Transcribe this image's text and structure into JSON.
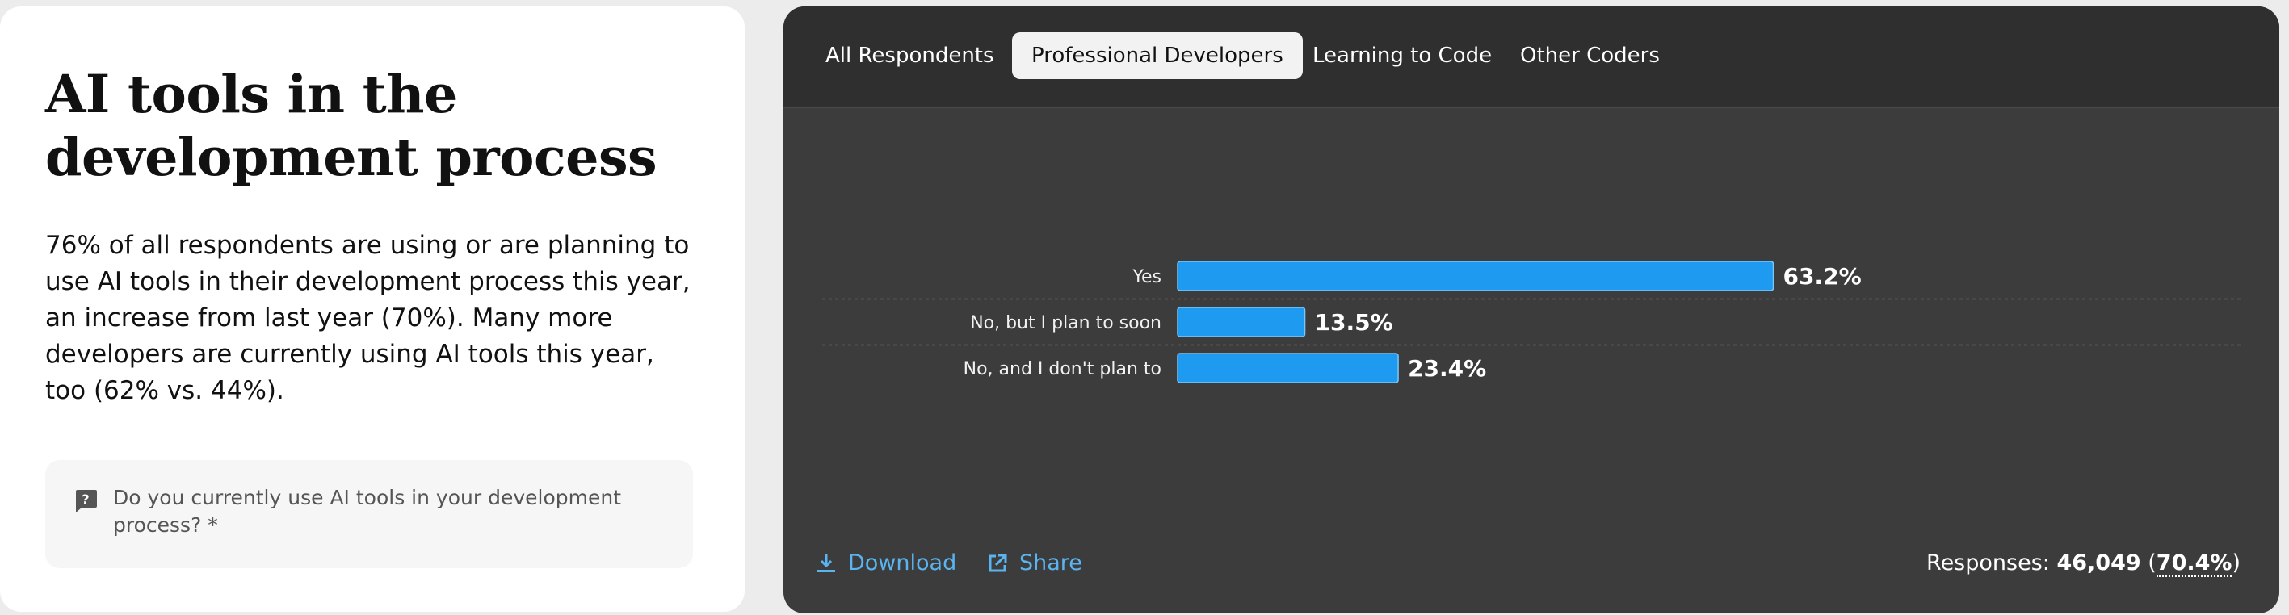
{
  "left": {
    "title": "AI tools in the development process",
    "description": "76% of all respondents are using or are planning to use AI tools in their development process this year, an increase from last year (70%). Many more developers are currently using AI tools this year, too (62% vs. 44%).",
    "question": "Do you currently use AI tools in your development process? *",
    "question_icon": "question-mark-icon"
  },
  "tabs": [
    {
      "label": "All Respondents",
      "active": false
    },
    {
      "label": "Professional Developers",
      "active": true
    },
    {
      "label": "Learning to Code",
      "active": false
    },
    {
      "label": "Other Coders",
      "active": false
    }
  ],
  "chart_data": {
    "type": "bar",
    "orientation": "horizontal",
    "categories": [
      "Yes",
      "No, but I plan to soon",
      "No, and I don't plan to"
    ],
    "values": [
      63.2,
      13.5,
      23.4
    ],
    "value_labels": [
      "63.2%",
      "13.5%",
      "23.4%"
    ],
    "xlim": [
      0,
      100
    ],
    "bar_color": "#1e9bf0",
    "grid": false
  },
  "footer": {
    "download_label": "Download",
    "share_label": "Share",
    "responses_label": "Responses:",
    "responses_count": "46,049",
    "responses_pct": "70.4%"
  },
  "colors": {
    "accent": "#1e9bf0",
    "link": "#5ab4f0",
    "panel_bg": "#3c3c3c",
    "tabbar_bg": "#2f2f2f"
  }
}
